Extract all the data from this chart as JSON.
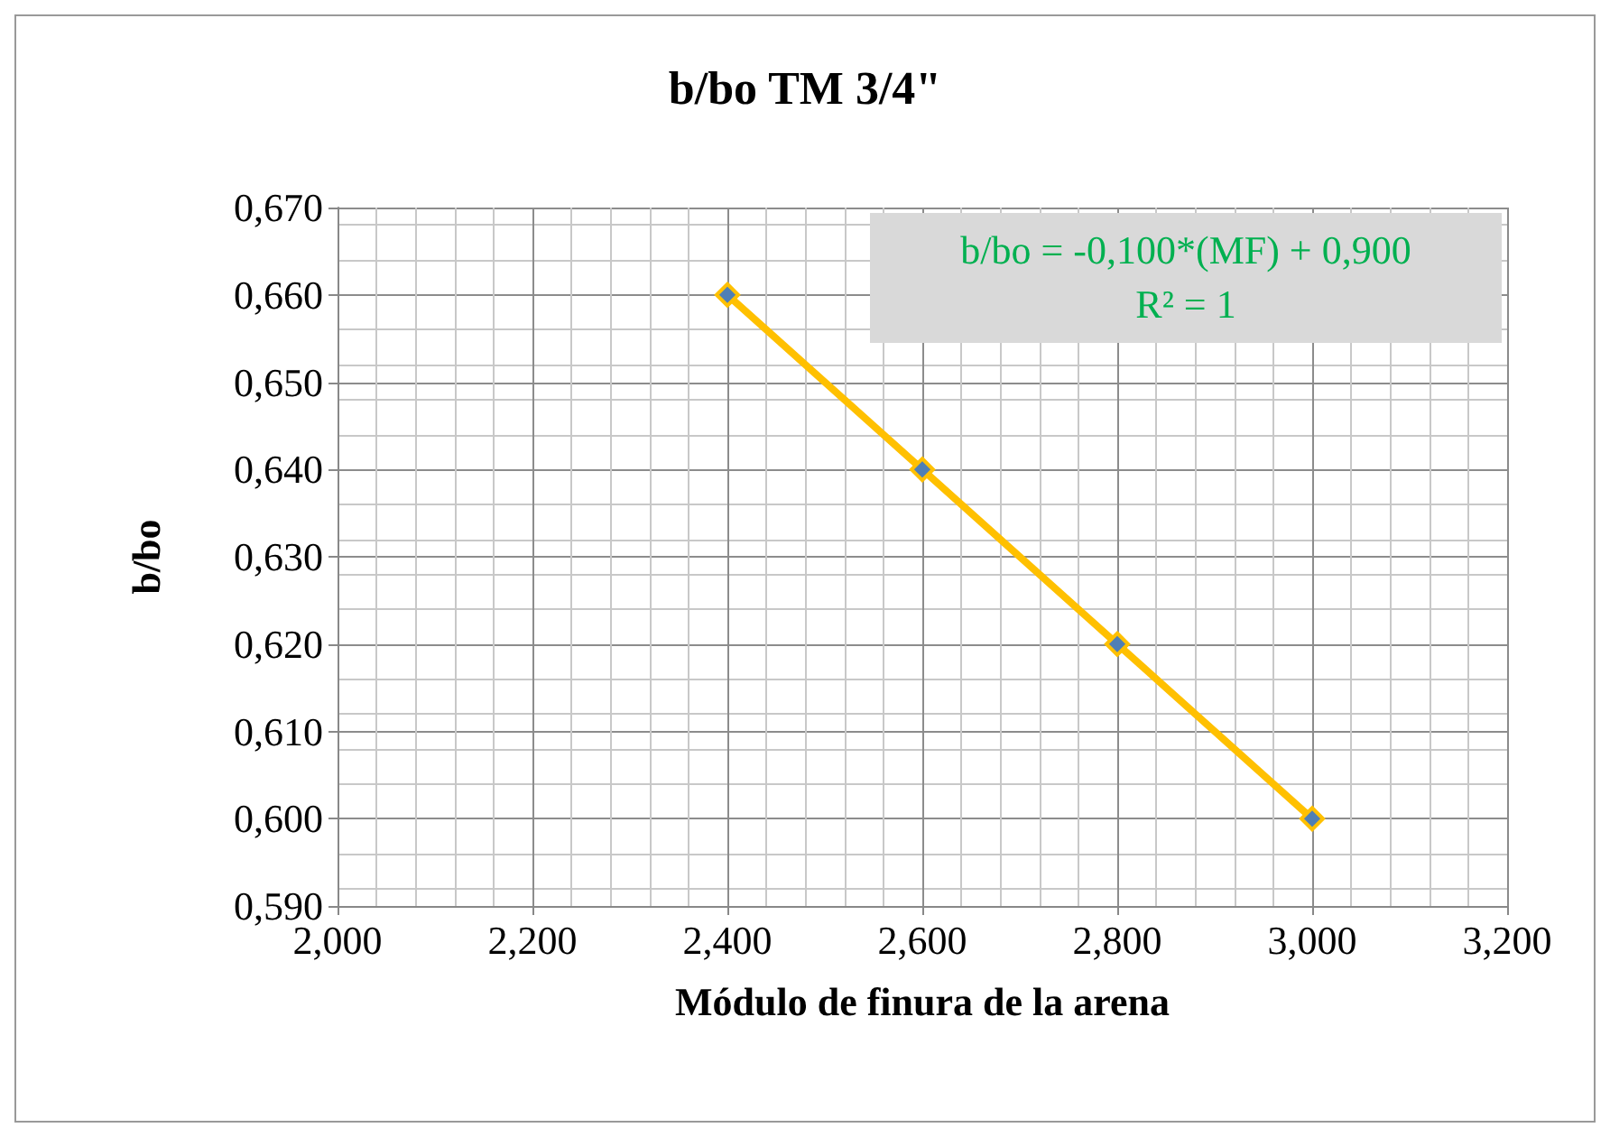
{
  "chart_data": {
    "type": "line",
    "title": "b/bo TM 3/4\"",
    "xlabel": "Módulo de finura de la arena",
    "ylabel": "b/bo",
    "x": [
      2.4,
      2.6,
      2.8,
      3.0
    ],
    "series": [
      {
        "color": "#ffc000",
        "values": [
          0.66,
          0.64,
          0.62,
          0.6
        ]
      }
    ],
    "xlim": [
      2.0,
      3.2
    ],
    "xticks": [
      {
        "value": 2.0,
        "label": "2,000"
      },
      {
        "value": 2.2,
        "label": "2,200"
      },
      {
        "value": 2.4,
        "label": "2,400"
      },
      {
        "value": 2.6,
        "label": "2,600"
      },
      {
        "value": 2.8,
        "label": "2,800"
      },
      {
        "value": 3.0,
        "label": "3,000"
      },
      {
        "value": 3.2,
        "label": "3,200"
      }
    ],
    "ylim": [
      0.59,
      0.67
    ],
    "yticks": [
      {
        "value": 0.59,
        "label": "0,590"
      },
      {
        "value": 0.6,
        "label": "0,600"
      },
      {
        "value": 0.61,
        "label": "0,610"
      },
      {
        "value": 0.62,
        "label": "0,620"
      },
      {
        "value": 0.63,
        "label": "0,630"
      },
      {
        "value": 0.64,
        "label": "0,640"
      },
      {
        "value": 0.65,
        "label": "0,650"
      },
      {
        "value": 0.66,
        "label": "0,660"
      },
      {
        "value": 0.67,
        "label": "0,670"
      }
    ],
    "annotations": [
      "b/bo = -0,100*(MF) + 0,900",
      "R² = 1"
    ],
    "grid": true,
    "marker": "diamond",
    "line_style": "solid"
  }
}
